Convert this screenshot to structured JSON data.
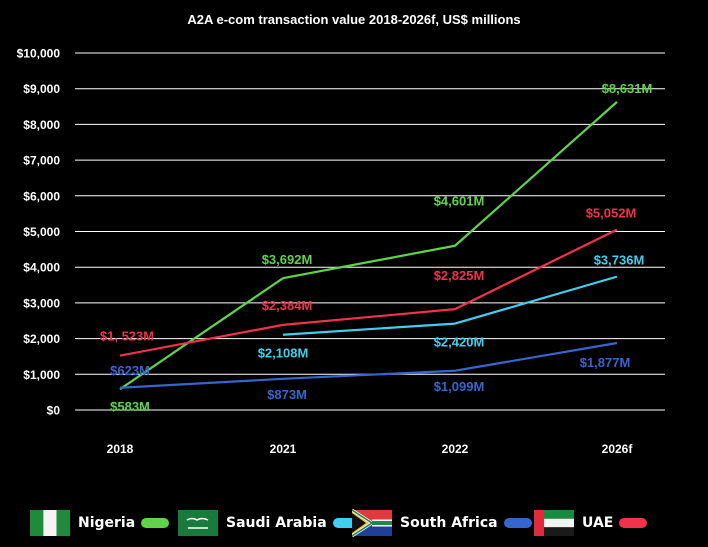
{
  "chart_data": {
    "type": "line",
    "title": "A2A e-com transaction value 2018-2026f, US$ millions",
    "xlabel": "",
    "ylabel": "",
    "categories": [
      "2018",
      "2021",
      "2022",
      "2026f"
    ],
    "ylim": [
      0,
      10000
    ],
    "yticks": [
      0,
      1000,
      2000,
      3000,
      4000,
      5000,
      6000,
      7000,
      8000,
      9000,
      10000
    ],
    "ytick_labels": [
      "$0",
      "$1,000",
      "$2,000",
      "$3,000",
      "$4,000",
      "$5,000",
      "$6,000",
      "$7,000",
      "$8,000",
      "$9,000",
      "$10,000"
    ],
    "grid": true,
    "legend_position": "bottom",
    "series": [
      {
        "name": "Nigeria",
        "color": "#5fd44a",
        "values": [
          583,
          3692,
          4601,
          8631
        ],
        "labels": [
          "$583M",
          "$3,692M",
          "$4,601M",
          "$8,631M"
        ]
      },
      {
        "name": "Saudi Arabia",
        "color": "#3fcfef",
        "values": [
          null,
          2108,
          2420,
          3736
        ],
        "labels": [
          "",
          "$2,108M",
          "$2,420M",
          "$3,736M"
        ]
      },
      {
        "name": "South Africa",
        "color": "#3566cf",
        "values": [
          623,
          873,
          1099,
          1877
        ],
        "labels": [
          "$623M",
          "$873M",
          "$1,099M",
          "$1,877M"
        ]
      },
      {
        "name": "UAE",
        "color": "#f0324a",
        "values": [
          1523,
          2384,
          2825,
          5052
        ],
        "labels": [
          "$1, 523M",
          "$2,384M",
          "$2,825M",
          "$5,052M"
        ]
      }
    ]
  },
  "legend": [
    {
      "label": "Nigeria",
      "flag": "nigeria-flag",
      "color": "#5fd44a"
    },
    {
      "label": "Saudi Arabia",
      "flag": "saudi-arabia-flag",
      "color": "#3fcfef"
    },
    {
      "label": "South Africa",
      "flag": "south-africa-flag",
      "color": "#3566cf"
    },
    {
      "label": "UAE",
      "flag": "uae-flag",
      "color": "#f0324a"
    }
  ]
}
